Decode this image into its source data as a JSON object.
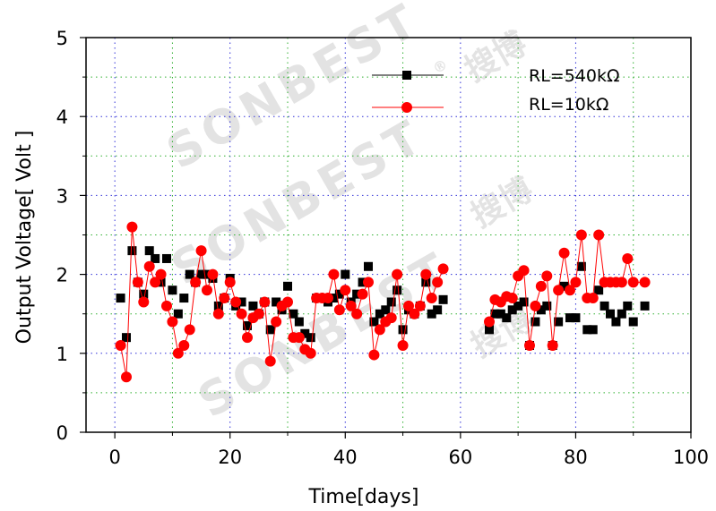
{
  "chart_data": {
    "type": "line",
    "title": "",
    "xlabel": "Time[days]",
    "ylabel": "Output Voltage[ Volt ]",
    "xlim": [
      -5,
      100
    ],
    "ylim": [
      0,
      5
    ],
    "xticks": [
      0,
      20,
      40,
      60,
      80,
      100
    ],
    "yticks": [
      0,
      1,
      2,
      3,
      4,
      5
    ],
    "legend_position": "top-right",
    "watermark": [
      "SONBEST",
      "®",
      "搜博"
    ],
    "colors": {
      "black": "#000000",
      "red": "#ff0000",
      "dotted_blue": "#3030d8",
      "dotted_green": "#30b030"
    },
    "series": [
      {
        "name": "RL=540kΩ",
        "marker": "square",
        "color": "#000000",
        "line": false,
        "x": [
          1,
          2,
          3,
          4,
          5,
          6,
          7,
          8,
          9,
          10,
          11,
          12,
          13,
          14,
          15,
          16,
          17,
          18,
          19,
          20,
          21,
          22,
          23,
          24,
          25,
          26,
          27,
          28,
          29,
          30,
          31,
          32,
          33,
          34,
          35,
          36,
          37,
          38,
          39,
          40,
          41,
          42,
          43,
          44,
          45,
          46,
          47,
          48,
          49,
          50,
          51,
          52,
          53,
          54,
          55,
          56,
          57,
          65,
          66,
          67,
          68,
          69,
          70,
          71,
          72,
          73,
          74,
          75,
          76,
          77,
          78,
          79,
          80,
          81,
          82,
          83,
          84,
          85,
          86,
          87,
          88,
          89,
          90,
          92
        ],
        "y": [
          1.7,
          1.2,
          2.3,
          1.9,
          1.75,
          2.3,
          2.2,
          1.9,
          2.2,
          1.8,
          1.5,
          1.7,
          2.0,
          1.9,
          2.0,
          2.0,
          1.95,
          1.6,
          1.7,
          1.95,
          1.6,
          1.65,
          1.35,
          1.6,
          1.5,
          1.65,
          1.3,
          1.65,
          1.55,
          1.85,
          1.5,
          1.4,
          1.25,
          1.2,
          1.7,
          1.7,
          1.65,
          1.7,
          1.75,
          2.0,
          1.65,
          1.75,
          1.9,
          2.1,
          1.4,
          1.5,
          1.55,
          1.65,
          1.8,
          1.3,
          1.55,
          1.5,
          1.6,
          1.9,
          1.5,
          1.55,
          1.68,
          1.3,
          1.5,
          1.5,
          1.45,
          1.55,
          1.6,
          1.65,
          1.1,
          1.4,
          1.55,
          1.6,
          1.1,
          1.4,
          1.85,
          1.45,
          1.45,
          2.1,
          1.3,
          1.3,
          1.8,
          1.6,
          1.5,
          1.4,
          1.5,
          1.6,
          1.4,
          1.6
        ]
      },
      {
        "name": "RL=10kΩ",
        "marker": "circle",
        "color": "#ff0000",
        "line": true,
        "x": [
          1,
          2,
          3,
          4,
          5,
          6,
          7,
          8,
          9,
          10,
          11,
          12,
          13,
          14,
          15,
          16,
          17,
          18,
          19,
          20,
          21,
          22,
          23,
          24,
          25,
          26,
          27,
          28,
          29,
          30,
          31,
          32,
          33,
          34,
          35,
          36,
          37,
          38,
          39,
          40,
          41,
          42,
          43,
          44,
          45,
          46,
          47,
          48,
          49,
          50,
          51,
          52,
          53,
          54,
          55,
          56,
          57,
          65,
          66,
          67,
          68,
          69,
          70,
          71,
          72,
          73,
          74,
          75,
          76,
          77,
          78,
          79,
          80,
          81,
          82,
          83,
          84,
          85,
          86,
          87,
          88,
          89,
          90,
          92
        ],
        "y": [
          1.1,
          0.7,
          2.6,
          1.9,
          1.65,
          2.1,
          1.9,
          2.0,
          1.6,
          1.4,
          1.0,
          1.1,
          1.3,
          1.9,
          2.3,
          1.8,
          2.0,
          1.5,
          1.7,
          1.9,
          1.65,
          1.5,
          1.2,
          1.45,
          1.5,
          1.65,
          0.9,
          1.4,
          1.6,
          1.65,
          1.2,
          1.2,
          1.05,
          1.0,
          1.7,
          1.7,
          1.7,
          2.0,
          1.55,
          1.8,
          1.6,
          1.5,
          1.75,
          1.9,
          0.98,
          1.3,
          1.4,
          1.45,
          2.0,
          1.1,
          1.6,
          1.5,
          1.6,
          2.0,
          1.7,
          1.9,
          2.07,
          1.4,
          1.68,
          1.65,
          1.72,
          1.7,
          1.98,
          2.05,
          1.1,
          1.6,
          1.85,
          1.98,
          1.1,
          1.8,
          2.27,
          1.8,
          1.9,
          2.5,
          1.7,
          1.7,
          2.5,
          1.9,
          1.9,
          1.9,
          1.9,
          2.2,
          1.9,
          1.9
        ]
      }
    ]
  }
}
